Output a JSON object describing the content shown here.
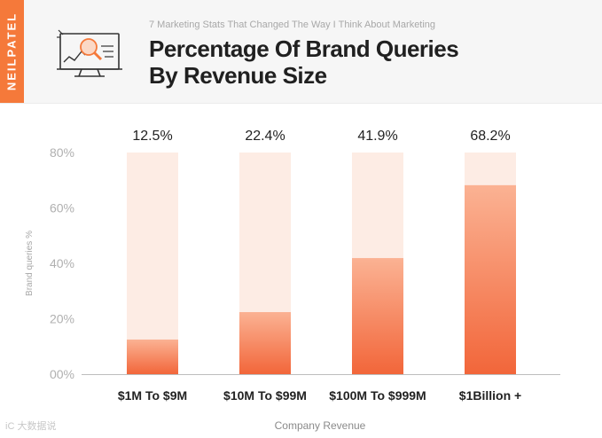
{
  "header": {
    "brand": "NEILPATEL",
    "subtitle": "7 Marketing Stats That Changed The Way I Think About Marketing",
    "title_line1": "Percentage Of Brand Queries",
    "title_line2": "By Revenue Size"
  },
  "colors": {
    "brand": "#f5793a",
    "bar_top": "#fbb293",
    "bar_bottom": "#f2663a",
    "bar_track": "#fdece4"
  },
  "chart_data": {
    "type": "bar",
    "title": "Percentage Of Brand Queries By Revenue Size",
    "xlabel": "Company Revenue",
    "ylabel": "Brand queries %",
    "categories": [
      "$1M To $9M",
      "$10M To $99M",
      "$100M To $999M",
      "$1Billion +"
    ],
    "values": [
      12.5,
      22.4,
      41.9,
      68.2
    ],
    "value_labels": [
      "12.5%",
      "22.4%",
      "41.9%",
      "68.2%"
    ],
    "ylim": [
      0,
      80
    ],
    "yticks": [
      0,
      20,
      40,
      60,
      80
    ],
    "ytick_labels": [
      "00%",
      "20%",
      "40%",
      "60%",
      "80%"
    ],
    "grid": false
  },
  "watermark": "iC 大数据说"
}
